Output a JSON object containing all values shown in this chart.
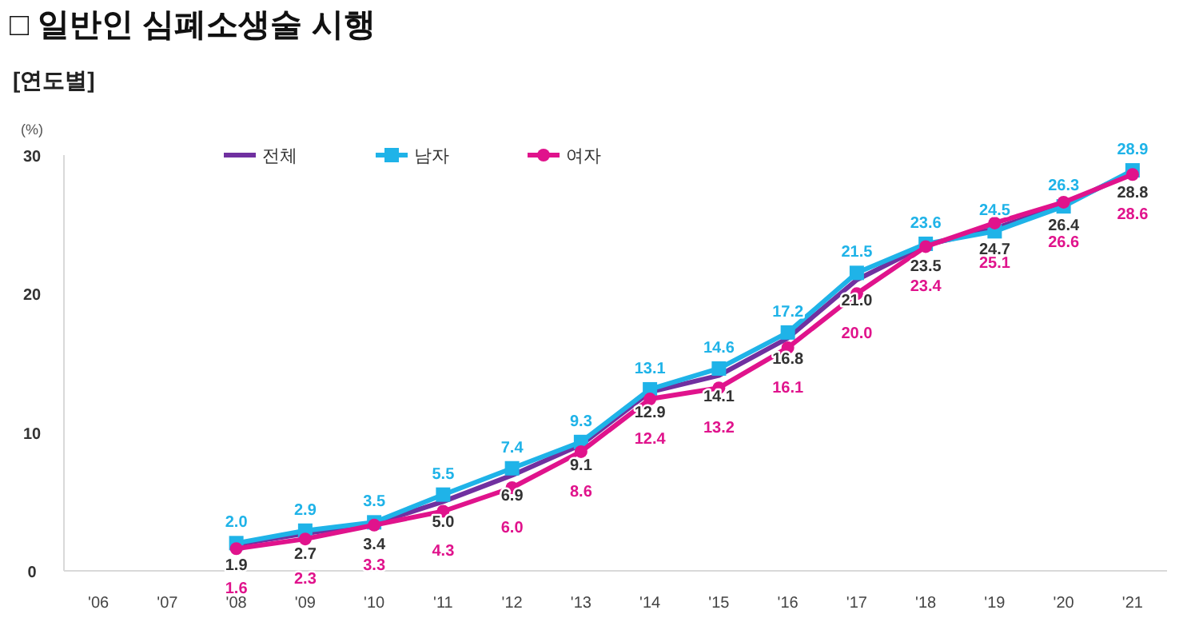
{
  "chart_data": {
    "type": "line",
    "title": "□ 일반인 심폐소생술 시행",
    "subtitle": "[연도별]",
    "ylabel": "(%)",
    "categories": [
      "'06",
      "'07",
      "'08",
      "'09",
      "'10",
      "'11",
      "'12",
      "'13",
      "'14",
      "'15",
      "'16",
      "'17",
      "'18",
      "'19",
      "'20",
      "'21"
    ],
    "ylim": [
      0,
      30
    ],
    "yticks": [
      0,
      10,
      20,
      30
    ],
    "grid": false,
    "legend": "top",
    "series": [
      {
        "name": "전체",
        "color": "#7030a0",
        "marker": "none",
        "values": [
          null,
          null,
          1.9,
          2.7,
          3.4,
          5.0,
          6.9,
          9.1,
          12.9,
          14.1,
          16.8,
          21.0,
          23.5,
          24.7,
          26.4,
          28.8
        ],
        "value_labels": [
          null,
          null,
          "1.9",
          "2.7",
          "3.4",
          "5.0",
          "6.9",
          "9.1",
          "12.9",
          "14.1",
          "16.8",
          "21.0",
          "23.5",
          "24.7",
          "26.4",
          "28.8"
        ]
      },
      {
        "name": "남자",
        "color": "#1fb3e8",
        "marker": "square",
        "values": [
          null,
          null,
          2.0,
          2.9,
          3.5,
          5.5,
          7.4,
          9.3,
          13.1,
          14.6,
          17.2,
          21.5,
          23.6,
          24.5,
          26.3,
          28.9
        ],
        "value_labels": [
          null,
          null,
          "2.0",
          "2.9",
          "3.5",
          "5.5",
          "7.4",
          "9.3",
          "13.1",
          "14.6",
          "17.2",
          "21.5",
          "23.6",
          "24.5",
          "26.3",
          "28.9"
        ]
      },
      {
        "name": "여자",
        "color": "#e0138c",
        "marker": "circle",
        "values": [
          null,
          null,
          1.6,
          2.3,
          3.3,
          4.3,
          6.0,
          8.6,
          12.4,
          13.2,
          16.1,
          20.0,
          23.4,
          25.1,
          26.6,
          28.6
        ],
        "value_labels": [
          null,
          null,
          "1.6",
          "2.3",
          "3.3",
          "4.3",
          "6.0",
          "8.6",
          "12.4",
          "13.2",
          "16.1",
          "20.0",
          "23.4",
          "25.1",
          "26.6",
          "28.6"
        ]
      }
    ]
  }
}
